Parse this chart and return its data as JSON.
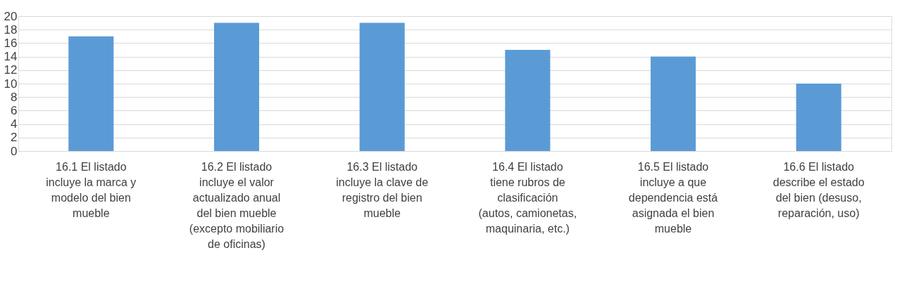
{
  "chart_data": {
    "type": "bar",
    "categories": [
      "16.1 El listado incluye la marca  y modelo del bien mueble",
      "16.2 El listado incluye el valor actualizado anual del bien mueble (excepto mobiliario de oficinas)",
      "16.3 El listado incluye la clave de registro del bien mueble",
      "16.4 El listado tiene rubros de clasificación (autos, camionetas, maquinaria, etc.)",
      "16.5 El listado incluye a que dependencia está asignada el bien mueble",
      "16.6 El listado describe el estado del bien (desuso, reparación, uso)"
    ],
    "values": [
      17,
      19,
      19,
      15,
      14,
      10
    ],
    "color": "#5b9bd5",
    "ylim": [
      0,
      20
    ],
    "yticks": [
      0,
      2,
      4,
      6,
      8,
      10,
      12,
      14,
      16,
      18,
      20
    ],
    "grid": "y"
  }
}
